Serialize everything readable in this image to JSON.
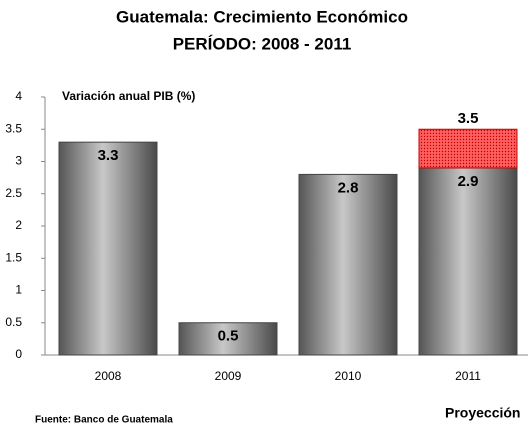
{
  "chart_data": {
    "type": "stacked_bar",
    "title": "Guatemala: Crecimiento Económico",
    "subtitle": "PERÍODO: 2008 - 2011",
    "y_label": "Variación anual PIB (%)",
    "source": "Fuente: Banco de Guatemala",
    "categories": [
      "2008",
      "2009",
      "2010",
      "2011"
    ],
    "series": [
      {
        "color": "#7f7f7f",
        "values": [
          3.3,
          0.5,
          2.8,
          2.9
        ]
      },
      {
        "name": "Proyección",
        "color": "#ff5050",
        "values": [
          null,
          null,
          null,
          0.6
        ]
      }
    ],
    "totals": [
      null,
      null,
      null,
      3.5
    ],
    "ylim": [
      0,
      4
    ],
    "yticks": [
      0,
      0.5,
      1,
      1.5,
      2,
      2.5,
      3,
      3.5,
      4
    ],
    "grid": false
  }
}
